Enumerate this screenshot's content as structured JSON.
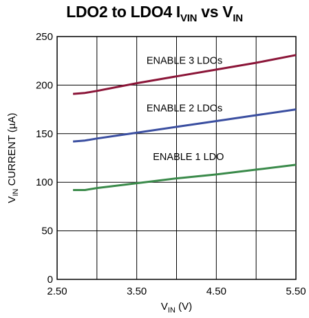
{
  "title": {
    "parts": [
      {
        "text": "LDO2 to LDO4 I",
        "sub": false
      },
      {
        "text": "VIN",
        "sub": true
      },
      {
        "text": " vs V",
        "sub": false
      },
      {
        "text": "IN",
        "sub": true
      }
    ]
  },
  "chart_data": {
    "type": "line",
    "title": "LDO2 to LDO4 IVIN vs VIN",
    "xlabel": {
      "main": "V",
      "sub": "IN",
      "rest": " (V)"
    },
    "ylabel": {
      "main": "V",
      "sub": "IN",
      "rest": " CURRENT (µA)"
    },
    "xlim": [
      2.5,
      5.5
    ],
    "ylim": [
      0,
      250
    ],
    "xticks": [
      2.5,
      3.5,
      4.5,
      5.5
    ],
    "xtick_labels": [
      "2.50",
      "3.50",
      "4.50",
      "5.50"
    ],
    "yticks": [
      0,
      50,
      100,
      150,
      200,
      250
    ],
    "ytick_labels": [
      "0",
      "50",
      "100",
      "150",
      "200",
      "250"
    ],
    "grid": true,
    "series": [
      {
        "name": "ENABLE 3 LDOs",
        "color": "#8b1538",
        "x": [
          2.7,
          2.85,
          3.0,
          3.5,
          4.0,
          4.5,
          5.0,
          5.5
        ],
        "y": [
          191,
          192,
          194,
          202,
          209,
          216,
          223,
          231
        ]
      },
      {
        "name": "ENABLE 2 LDOs",
        "color": "#3a4ea0",
        "x": [
          2.7,
          2.85,
          3.0,
          3.5,
          4.0,
          4.5,
          5.0,
          5.5
        ],
        "y": [
          142,
          143,
          145,
          151,
          157,
          163,
          169,
          175
        ]
      },
      {
        "name": "ENABLE 1 LDO",
        "color": "#3a8a4a",
        "x": [
          2.7,
          2.85,
          3.0,
          3.5,
          4.0,
          4.5,
          5.0,
          5.5
        ],
        "y": [
          92,
          92,
          94,
          99,
          104,
          108,
          113,
          118
        ]
      }
    ]
  }
}
